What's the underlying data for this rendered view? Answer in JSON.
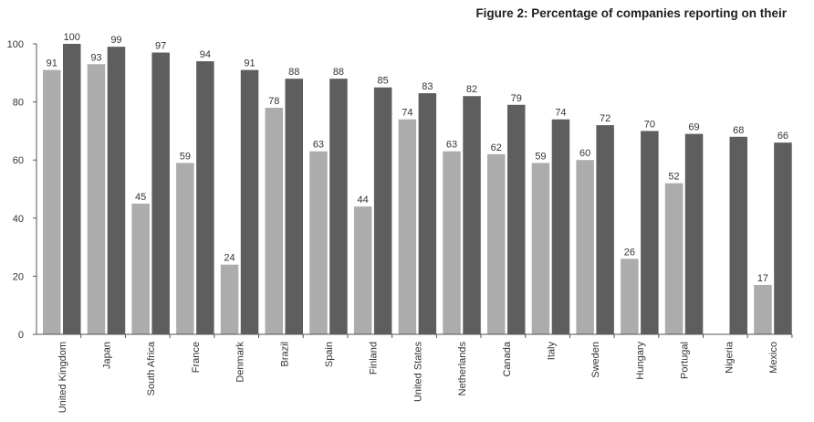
{
  "chart_data": {
    "type": "bar",
    "title": "Figure 2: Percentage of companies reporting on their",
    "xlabel": "",
    "ylabel": "",
    "ylim": [
      0,
      100
    ],
    "yticks": [
      0,
      20,
      40,
      60,
      80,
      100
    ],
    "grid": false,
    "categories": [
      "United Kingdom",
      "Japan",
      "South Africa",
      "France",
      "Denmark",
      "Brazil",
      "Spain",
      "Finland",
      "United States",
      "Netherlands",
      "Canada",
      "Italy",
      "Sweden",
      "Hungary",
      "Portugal",
      "Nigeria",
      "Mexico"
    ],
    "series": [
      {
        "values": [
          91,
          93,
          45,
          59,
          24,
          78,
          63,
          44,
          74,
          63,
          62,
          59,
          60,
          26,
          52,
          null,
          17
        ],
        "color": "#acacac"
      },
      {
        "values": [
          100,
          99,
          97,
          94,
          91,
          88,
          88,
          85,
          83,
          82,
          79,
          74,
          72,
          70,
          69,
          68,
          66
        ],
        "color": "#5e5e5e"
      }
    ]
  }
}
